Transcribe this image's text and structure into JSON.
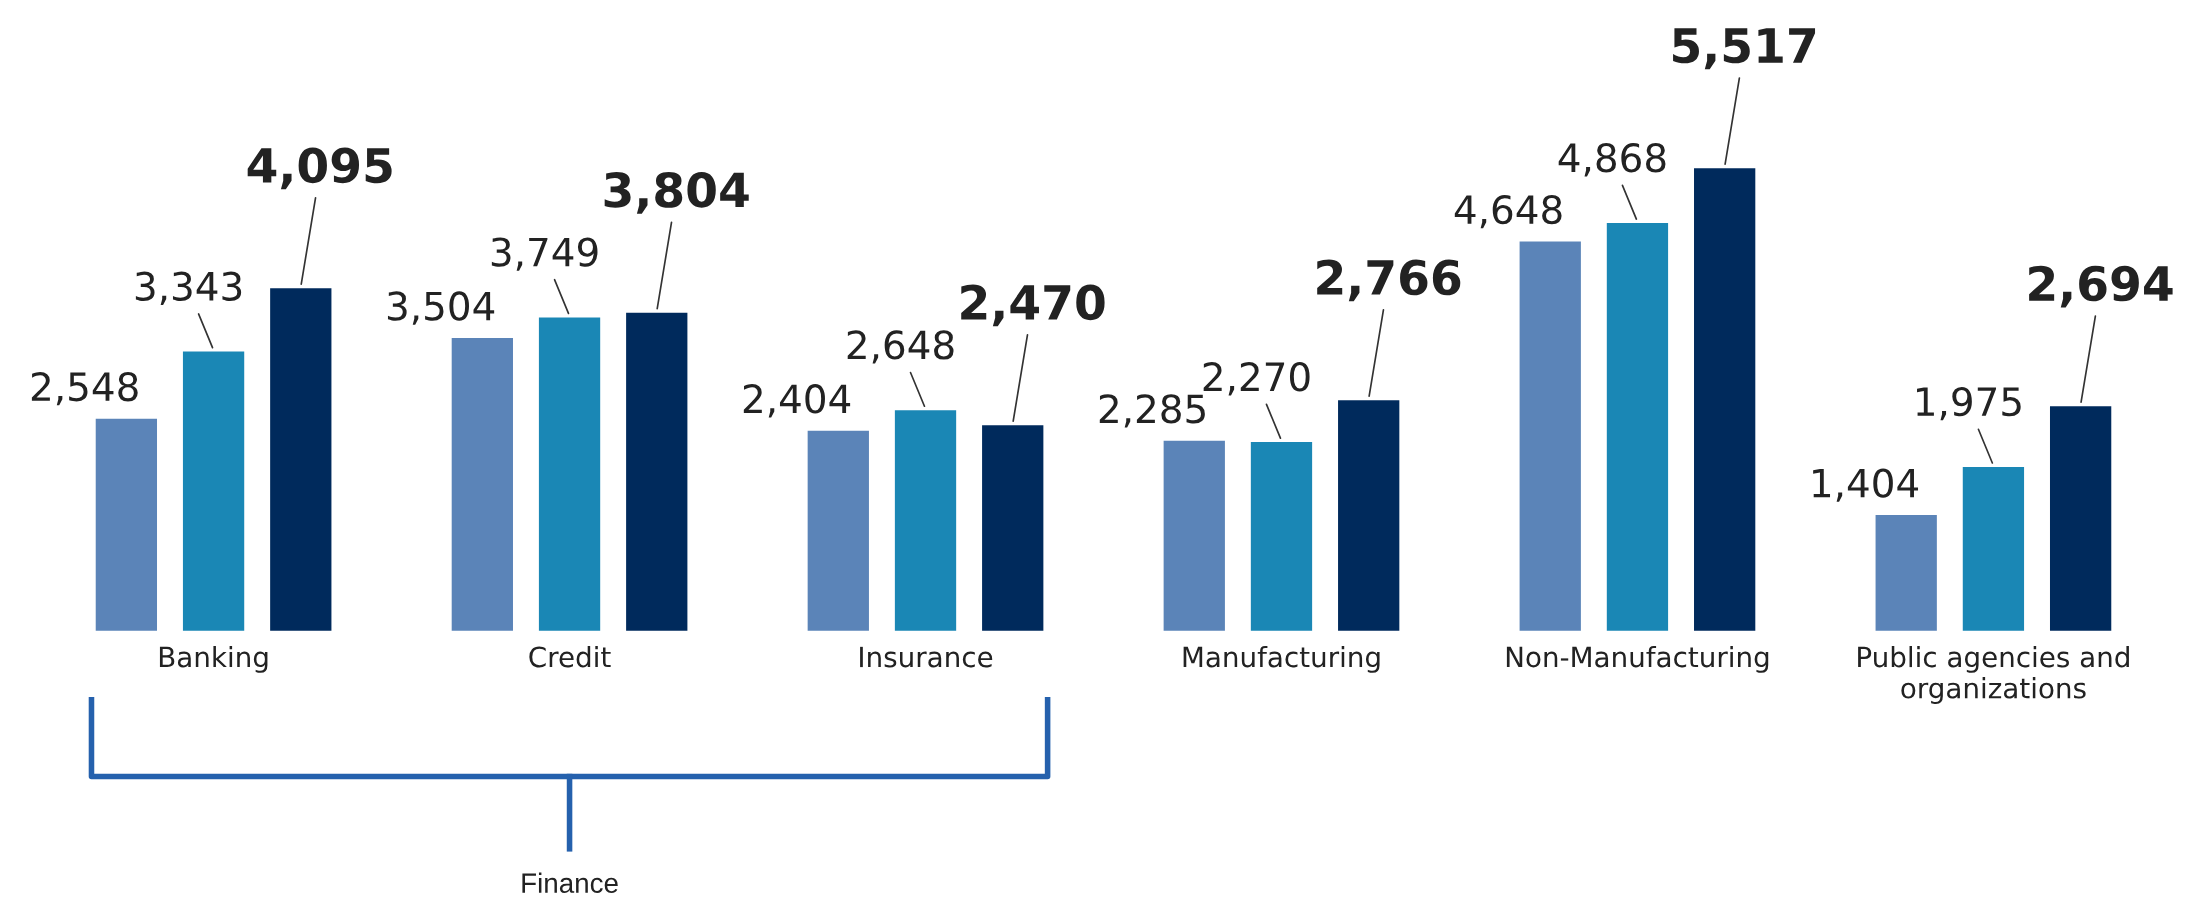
{
  "chart_data": {
    "type": "bar",
    "categories": [
      "Banking",
      "Credit",
      "Insurance",
      "Manufacturing",
      "Non-Manufacturing",
      "Public agencies and\norganizations"
    ],
    "series": [
      {
        "color": "#5b84b8",
        "values": [
          2548,
          3504,
          2404,
          2285,
          4648,
          1404
        ],
        "value_labels": [
          "2,548",
          "3,504",
          "2,404",
          "2,285",
          "4,648",
          "1,404"
        ]
      },
      {
        "color": "#1a87b5",
        "values": [
          3343,
          3749,
          2648,
          2270,
          4868,
          1975
        ],
        "value_labels": [
          "3,343",
          "3,749",
          "2,648",
          "2,270",
          "4,868",
          "1,975"
        ]
      },
      {
        "color": "#002a5c",
        "values": [
          4095,
          3804,
          2470,
          2766,
          5517,
          2694
        ],
        "value_labels": [
          "4,095",
          "3,804",
          "2,470",
          "2,766",
          "5,517",
          "2,694"
        ]
      }
    ],
    "data_labels": true,
    "grid": false,
    "legend": false,
    "tick_labels": "x",
    "annotations": [
      "Finance"
    ]
  }
}
